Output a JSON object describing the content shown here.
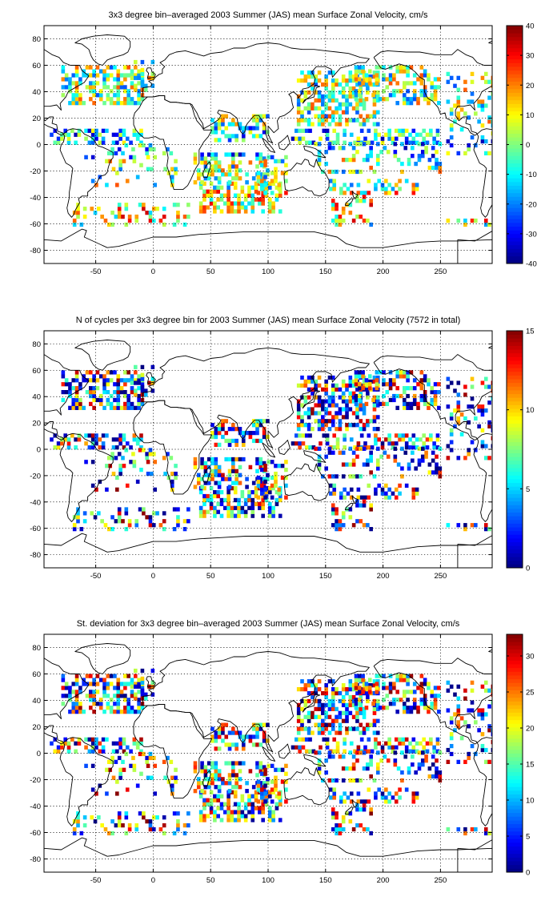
{
  "chart_data": [
    {
      "type": "heatmap",
      "title": "3x3 degree bin–averaged 2003 Summer (JAS) mean Surface Zonal Velocity, cm/s",
      "xlabel": "",
      "ylabel": "",
      "xlim": [
        -95,
        295
      ],
      "ylim": [
        -90,
        90
      ],
      "xticks": [
        -50,
        0,
        50,
        100,
        150,
        200,
        250
      ],
      "yticks": [
        -80,
        -60,
        -40,
        -20,
        0,
        20,
        40,
        60,
        80
      ],
      "grid": true,
      "colorbar": {
        "colormap": "jet",
        "range": [
          -40,
          40
        ],
        "ticks": [
          -40,
          -30,
          -20,
          -10,
          0,
          10,
          20,
          30,
          40
        ],
        "placement": "right"
      },
      "bin_size_deg": 3
    },
    {
      "type": "heatmap",
      "title": "N of cycles per 3x3 degree bin for 2003 Summer (JAS) mean Surface Zonal Velocity (7572 in total)",
      "xlabel": "",
      "ylabel": "",
      "xlim": [
        -95,
        295
      ],
      "ylim": [
        -90,
        90
      ],
      "xticks": [
        -50,
        0,
        50,
        100,
        150,
        200,
        250
      ],
      "yticks": [
        -80,
        -60,
        -40,
        -20,
        0,
        20,
        40,
        60,
        80
      ],
      "grid": true,
      "colorbar": {
        "colormap": "jet",
        "range": [
          0,
          15
        ],
        "ticks": [
          0,
          5,
          10,
          15
        ],
        "placement": "right"
      },
      "bin_size_deg": 3
    },
    {
      "type": "heatmap",
      "title": "St. deviation for 3x3 degree bin–averaged 2003 Summer (JAS) mean Surface Zonal Velocity, cm/s",
      "xlabel": "",
      "ylabel": "",
      "xlim": [
        -95,
        295
      ],
      "ylim": [
        -90,
        90
      ],
      "xticks": [
        -50,
        0,
        50,
        100,
        150,
        200,
        250
      ],
      "yticks": [
        -80,
        -60,
        -40,
        -20,
        0,
        20,
        40,
        60,
        80
      ],
      "grid": true,
      "colorbar": {
        "colormap": "jet",
        "range": [
          0,
          33
        ],
        "ticks": [
          0,
          5,
          10,
          15,
          20,
          25,
          30
        ],
        "placement": "right"
      },
      "bin_size_deg": 3
    }
  ]
}
